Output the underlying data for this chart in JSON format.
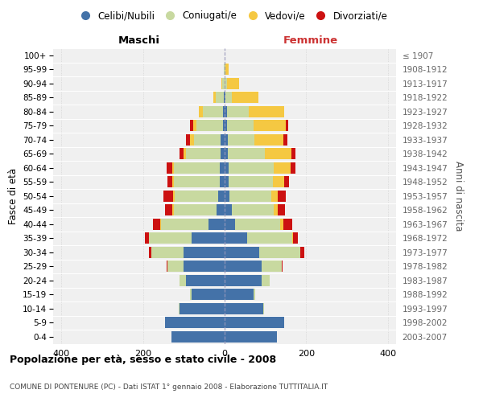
{
  "age_groups": [
    "0-4",
    "5-9",
    "10-14",
    "15-19",
    "20-24",
    "25-29",
    "30-34",
    "35-39",
    "40-44",
    "45-49",
    "50-54",
    "55-59",
    "60-64",
    "65-69",
    "70-74",
    "75-79",
    "80-84",
    "85-89",
    "90-94",
    "95-99",
    "100+"
  ],
  "birth_years": [
    "2003-2007",
    "1998-2002",
    "1993-1997",
    "1988-1992",
    "1983-1987",
    "1978-1982",
    "1973-1977",
    "1968-1972",
    "1963-1967",
    "1958-1962",
    "1953-1957",
    "1948-1952",
    "1943-1947",
    "1938-1942",
    "1933-1937",
    "1928-1932",
    "1923-1927",
    "1918-1922",
    "1913-1917",
    "1908-1912",
    "≤ 1907"
  ],
  "maschi": {
    "celibi": [
      130,
      145,
      110,
      80,
      95,
      100,
      100,
      80,
      40,
      20,
      15,
      12,
      12,
      10,
      10,
      4,
      4,
      2,
      0,
      0,
      0
    ],
    "coniugati": [
      0,
      0,
      2,
      5,
      15,
      40,
      80,
      105,
      115,
      105,
      108,
      112,
      112,
      85,
      65,
      65,
      50,
      20,
      5,
      2,
      0
    ],
    "vedovi": [
      0,
      0,
      0,
      0,
      0,
      0,
      0,
      0,
      2,
      3,
      4,
      4,
      5,
      6,
      10,
      8,
      10,
      5,
      2,
      0,
      0
    ],
    "divorziati": [
      0,
      0,
      0,
      0,
      0,
      2,
      6,
      10,
      18,
      18,
      22,
      12,
      12,
      10,
      10,
      8,
      0,
      0,
      0,
      0,
      0
    ]
  },
  "femmine": {
    "nubili": [
      128,
      145,
      95,
      70,
      90,
      90,
      85,
      55,
      25,
      18,
      12,
      10,
      10,
      8,
      8,
      5,
      5,
      2,
      0,
      0,
      0
    ],
    "coniugate": [
      0,
      0,
      2,
      5,
      20,
      50,
      100,
      110,
      112,
      102,
      102,
      108,
      110,
      90,
      65,
      65,
      55,
      15,
      5,
      2,
      0
    ],
    "vedove": [
      0,
      0,
      0,
      0,
      0,
      0,
      0,
      2,
      6,
      10,
      16,
      28,
      42,
      65,
      70,
      80,
      85,
      65,
      30,
      8,
      0
    ],
    "divorziate": [
      0,
      0,
      0,
      0,
      0,
      2,
      10,
      12,
      22,
      17,
      20,
      12,
      12,
      10,
      10,
      5,
      0,
      0,
      0,
      0,
      0
    ]
  },
  "colors": {
    "celibi": "#4472a8",
    "coniugati": "#c8d9a0",
    "vedovi": "#f5c842",
    "divorziati": "#cc1111"
  },
  "bg_color": "#f0f0f0",
  "grid_color": "#cccccc",
  "center_line_color": "#9999bb",
  "xlim": 420,
  "title": "Popolazione per età, sesso e stato civile - 2008",
  "subtitle": "COMUNE DI PONTENURE (PC) - Dati ISTAT 1° gennaio 2008 - Elaborazione TUTTITALIA.IT",
  "ylabel_left": "Fasce di età",
  "ylabel_right": "Anni di nascita",
  "xlabel_maschi": "Maschi",
  "xlabel_femmine": "Femmine",
  "legend_labels": [
    "Celibi/Nubili",
    "Coniugati/e",
    "Vedovi/e",
    "Divorziati/e"
  ]
}
